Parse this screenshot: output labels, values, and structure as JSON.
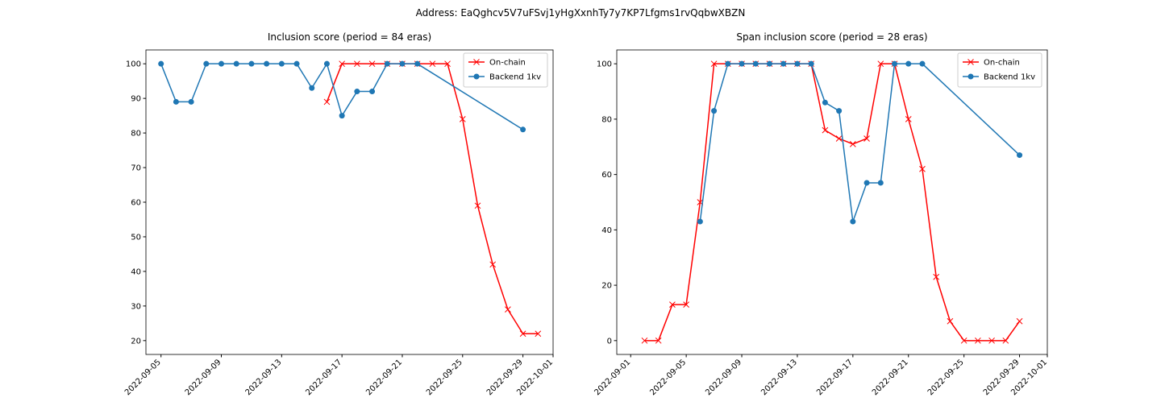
{
  "title": "Address: EaQghcv5V7uFSvj1yHgXxnhTy7y7KP7Lfgms1rvQqbwXBZN",
  "chart_data": [
    {
      "type": "line",
      "title": "Inclusion score (period = 84 eras)",
      "legend": "upper right",
      "xlim": [
        "2022-09-04",
        "2022-10-01"
      ],
      "ylim": [
        16,
        104
      ],
      "xticks": [
        "2022-09-05",
        "2022-09-09",
        "2022-09-13",
        "2022-09-17",
        "2022-09-21",
        "2022-09-25",
        "2022-09-29",
        "2022-10-01"
      ],
      "yticks": [
        20,
        30,
        40,
        50,
        60,
        70,
        80,
        90,
        100
      ],
      "series": [
        {
          "name": "On-chain",
          "color": "#ff0000",
          "marker": "x",
          "x": [
            "2022-09-16",
            "2022-09-17",
            "2022-09-18",
            "2022-09-19",
            "2022-09-20",
            "2022-09-21",
            "2022-09-22",
            "2022-09-23",
            "2022-09-24",
            "2022-09-25",
            "2022-09-26",
            "2022-09-27",
            "2022-09-28",
            "2022-09-29",
            "2022-09-30"
          ],
          "values": [
            89,
            100,
            100,
            100,
            100,
            100,
            100,
            100,
            100,
            84,
            59,
            42,
            29,
            22,
            22
          ]
        },
        {
          "name": "Backend 1kv",
          "color": "#1f77b4",
          "marker": "o",
          "x": [
            "2022-09-05",
            "2022-09-06",
            "2022-09-07",
            "2022-09-08",
            "2022-09-09",
            "2022-09-10",
            "2022-09-11",
            "2022-09-12",
            "2022-09-13",
            "2022-09-14",
            "2022-09-15",
            "2022-09-16",
            "2022-09-17",
            "2022-09-18",
            "2022-09-19",
            "2022-09-20",
            "2022-09-21",
            "2022-09-22",
            "2022-09-29"
          ],
          "values": [
            100,
            89,
            89,
            100,
            100,
            100,
            100,
            100,
            100,
            100,
            93,
            100,
            85,
            92,
            92,
            100,
            100,
            100,
            81
          ]
        }
      ]
    },
    {
      "type": "line",
      "title": "Span inclusion score (period = 28 eras)",
      "legend": "upper right",
      "xlim": [
        "2022-08-31",
        "2022-10-01"
      ],
      "ylim": [
        -5,
        105
      ],
      "xticks": [
        "2022-09-01",
        "2022-09-05",
        "2022-09-09",
        "2022-09-13",
        "2022-09-17",
        "2022-09-21",
        "2022-09-25",
        "2022-09-29",
        "2022-10-01"
      ],
      "yticks": [
        0,
        20,
        40,
        60,
        80,
        100
      ],
      "series": [
        {
          "name": "On-chain",
          "color": "#ff0000",
          "marker": "x",
          "x": [
            "2022-09-02",
            "2022-09-03",
            "2022-09-04",
            "2022-09-05",
            "2022-09-06",
            "2022-09-07",
            "2022-09-08",
            "2022-09-09",
            "2022-09-10",
            "2022-09-11",
            "2022-09-12",
            "2022-09-13",
            "2022-09-14",
            "2022-09-15",
            "2022-09-16",
            "2022-09-17",
            "2022-09-18",
            "2022-09-19",
            "2022-09-20",
            "2022-09-21",
            "2022-09-22",
            "2022-09-23",
            "2022-09-24",
            "2022-09-25",
            "2022-09-26",
            "2022-09-27",
            "2022-09-28",
            "2022-09-29"
          ],
          "values": [
            0,
            0,
            13,
            13,
            50,
            100,
            100,
            100,
            100,
            100,
            100,
            100,
            100,
            76,
            73,
            71,
            73,
            100,
            100,
            80,
            62,
            23,
            7,
            0,
            0,
            0,
            0,
            7
          ]
        },
        {
          "name": "Backend 1kv",
          "color": "#1f77b4",
          "marker": "o",
          "x": [
            "2022-09-06",
            "2022-09-07",
            "2022-09-08",
            "2022-09-09",
            "2022-09-10",
            "2022-09-11",
            "2022-09-12",
            "2022-09-13",
            "2022-09-14",
            "2022-09-15",
            "2022-09-16",
            "2022-09-17",
            "2022-09-18",
            "2022-09-19",
            "2022-09-20",
            "2022-09-21",
            "2022-09-22",
            "2022-09-29"
          ],
          "values": [
            43,
            83,
            100,
            100,
            100,
            100,
            100,
            100,
            100,
            86,
            83,
            43,
            57,
            57,
            100,
            100,
            100,
            67
          ]
        }
      ]
    }
  ]
}
